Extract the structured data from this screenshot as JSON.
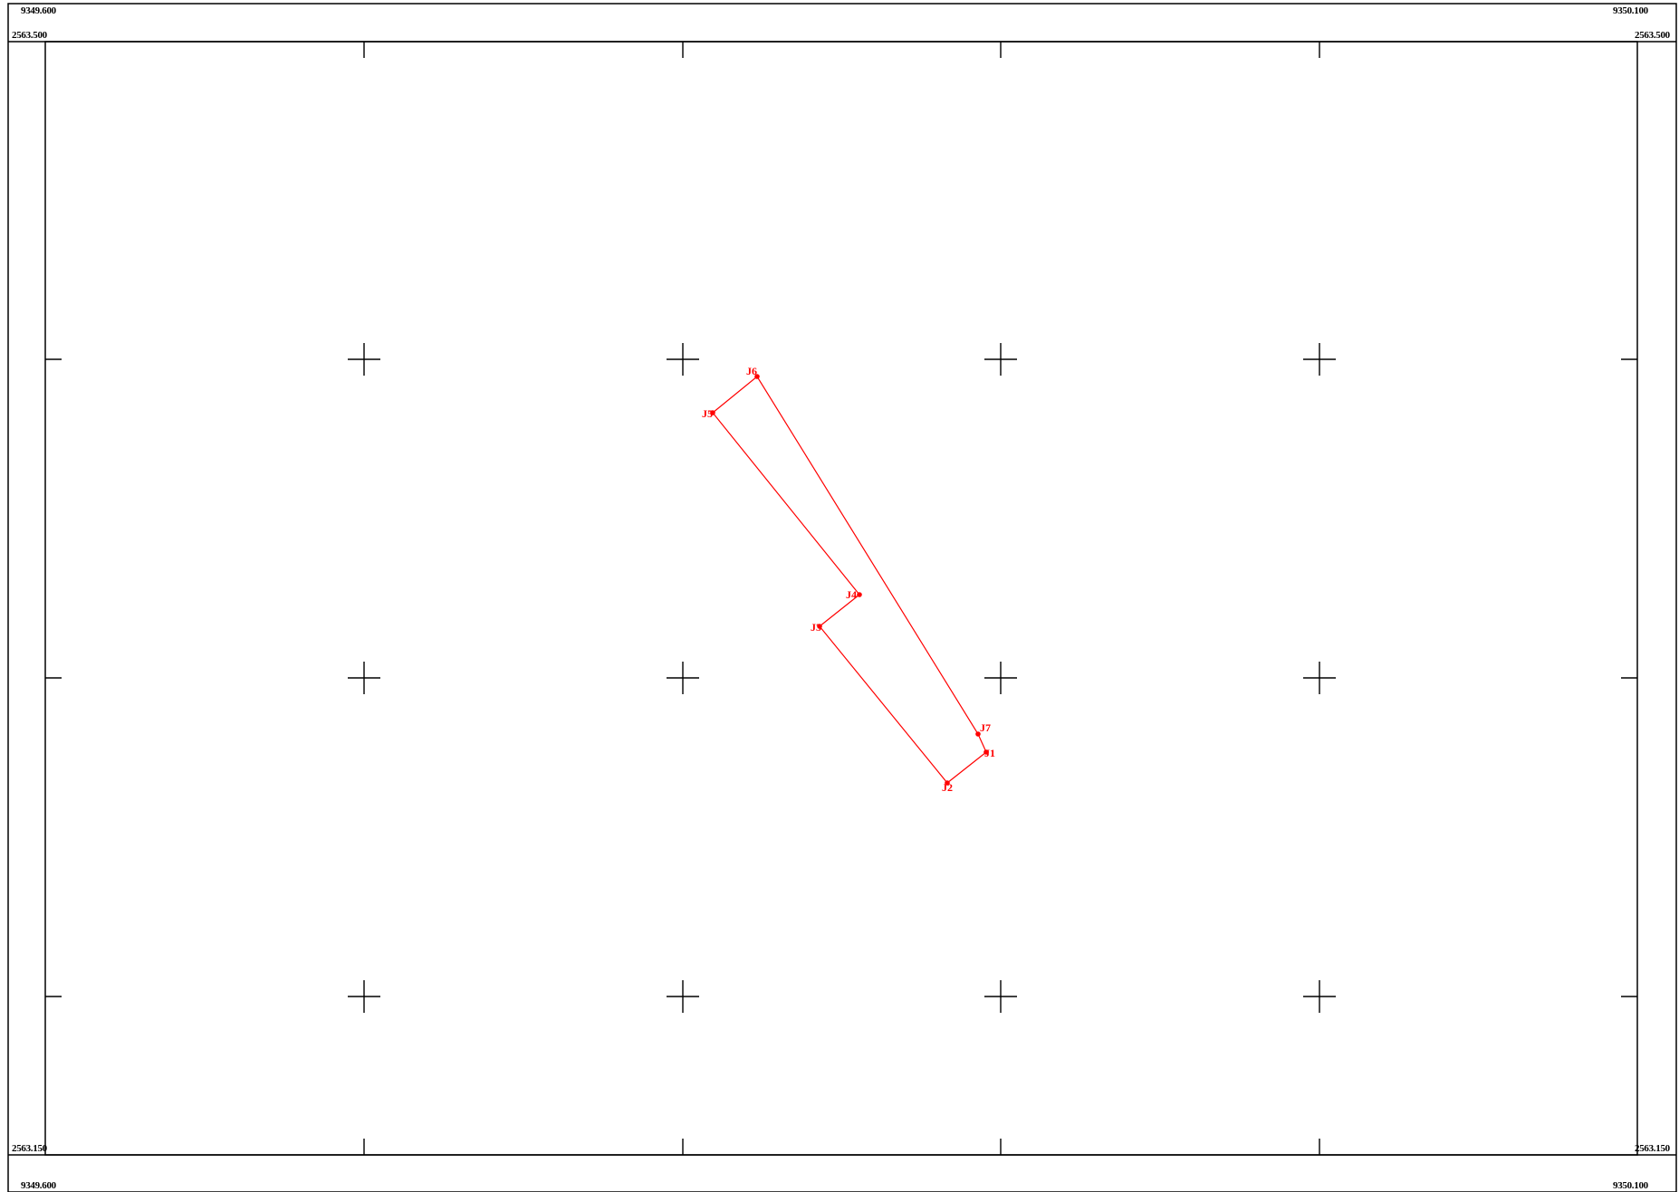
{
  "frame": {
    "x_left": "9349.600",
    "x_right": "9350.100",
    "y_top": "2563.500",
    "y_bottom": "2563.150",
    "line_color": "#000000"
  },
  "parcel": {
    "color": "#ff0000",
    "points": [
      {
        "id": "J1",
        "label": "J1"
      },
      {
        "id": "J2",
        "label": "J2"
      },
      {
        "id": "J3",
        "label": "J3"
      },
      {
        "id": "J4",
        "label": "J4"
      },
      {
        "id": "J5",
        "label": "J5"
      },
      {
        "id": "J6",
        "label": "J6"
      },
      {
        "id": "J7",
        "label": "J7"
      }
    ]
  }
}
